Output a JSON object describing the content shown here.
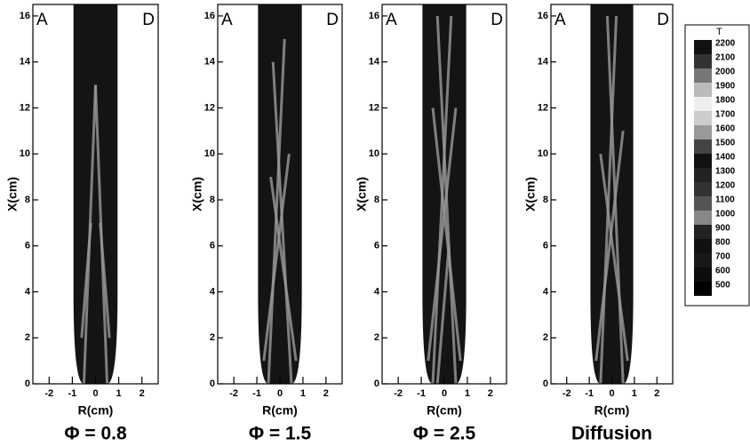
{
  "chart_data": [
    {
      "type": "contour",
      "subtitle": "Φ = 0.8",
      "xlabel": "R(cm)",
      "ylabel": "X(cm)",
      "xlim": [
        -2.7,
        2.7
      ],
      "ylim": [
        0,
        16.5
      ],
      "xticks": [
        -2,
        -1,
        0,
        1,
        2
      ],
      "yticks": [
        0,
        2,
        4,
        6,
        8,
        10,
        12,
        14,
        16
      ],
      "annotations": [
        "A",
        "D"
      ]
    },
    {
      "type": "contour",
      "subtitle": "Φ = 1.5",
      "xlabel": "R(cm)",
      "ylabel": "X(cm)",
      "xlim": [
        -2.7,
        2.7
      ],
      "ylim": [
        0,
        16.5
      ],
      "xticks": [
        -2,
        -1,
        0,
        1,
        2
      ],
      "yticks": [
        0,
        2,
        4,
        6,
        8,
        10,
        12,
        14,
        16
      ],
      "annotations": [
        "A",
        "D"
      ]
    },
    {
      "type": "contour",
      "subtitle": "Φ = 2.5",
      "xlabel": "R(cm)",
      "ylabel": "X(cm)",
      "xlim": [
        -2.7,
        2.7
      ],
      "ylim": [
        0,
        16.5
      ],
      "xticks": [
        -2,
        -1,
        0,
        1,
        2
      ],
      "yticks": [
        0,
        2,
        4,
        6,
        8,
        10,
        12,
        14,
        16
      ],
      "annotations": [
        "A",
        "D"
      ]
    },
    {
      "type": "contour",
      "subtitle": "Diffusion",
      "xlabel": "R(cm)",
      "ylabel": "X(cm)",
      "xlim": [
        -2.7,
        2.7
      ],
      "ylim": [
        0,
        16.5
      ],
      "xticks": [
        -2,
        -1,
        0,
        1,
        2
      ],
      "yticks": [
        0,
        2,
        4,
        6,
        8,
        10,
        12,
        14,
        16
      ],
      "annotations": [
        "A",
        "D"
      ]
    }
  ],
  "colorbar": {
    "title": "T",
    "levels": [
      2200,
      2100,
      2000,
      1900,
      1800,
      1700,
      1600,
      1500,
      1400,
      1300,
      1200,
      1100,
      1000,
      900,
      800,
      700,
      600,
      500
    ],
    "colors": [
      "#111111",
      "#333333",
      "#777777",
      "#bbbbbb",
      "#eeeeee",
      "#cccccc",
      "#999999",
      "#444444",
      "#111111",
      "#222222",
      "#333333",
      "#555555",
      "#888888",
      "#222222",
      "#111111",
      "#181818",
      "#0d0d0d",
      "#000000"
    ]
  }
}
